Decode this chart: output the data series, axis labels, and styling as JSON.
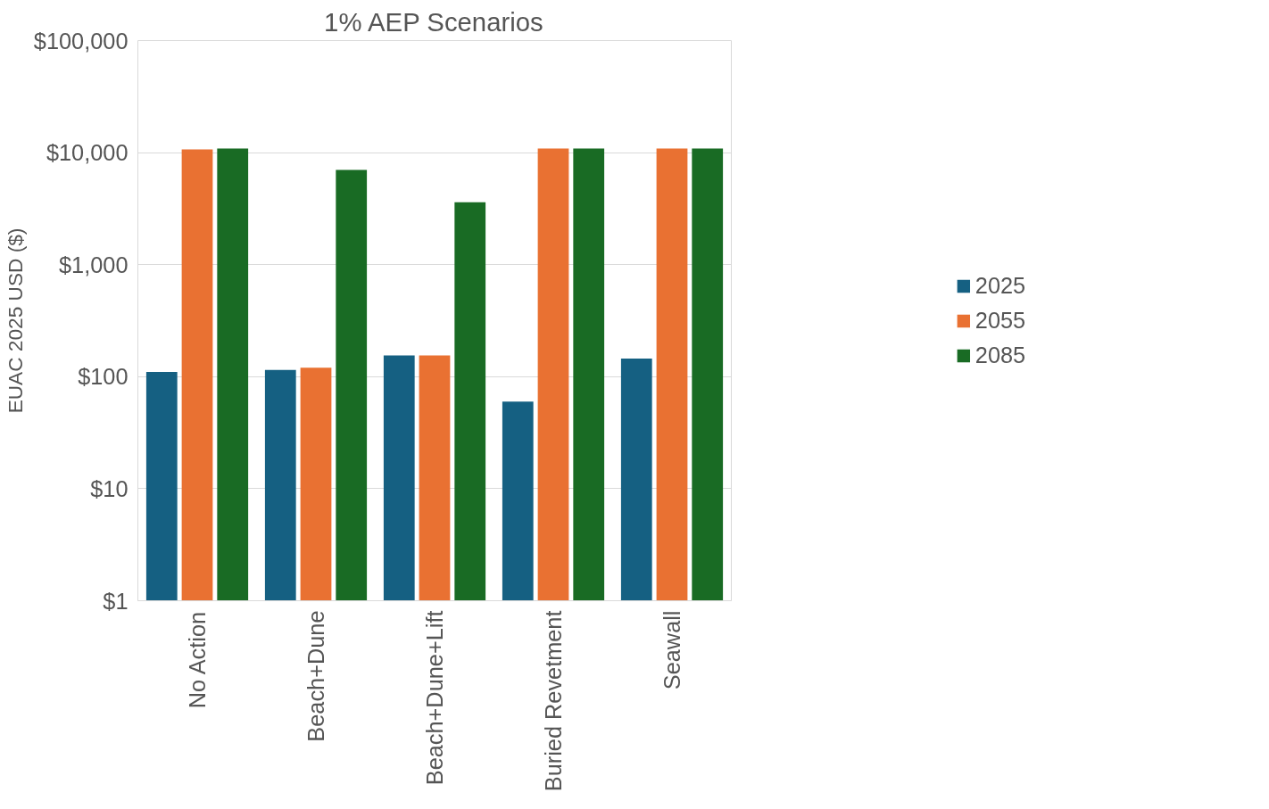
{
  "chart_data": {
    "type": "bar",
    "title": "1% AEP Scenarios",
    "ylabel": "EUAC 2025 USD ($)",
    "categories": [
      "No Action",
      "Beach+Dune",
      "Beach+Dune+Lift",
      "Buried Revetment",
      "Seawall"
    ],
    "series": [
      {
        "name": "2025",
        "color": "#156082",
        "values": [
          110,
          115,
          155,
          60,
          145
        ]
      },
      {
        "name": "2055",
        "color": "#e97132",
        "values": [
          10700,
          120,
          155,
          10900,
          10900
        ]
      },
      {
        "name": "2085",
        "color": "#196b24",
        "values": [
          10900,
          7000,
          3600,
          10900,
          10900
        ]
      }
    ],
    "log": true,
    "ylim": [
      1,
      100000
    ],
    "yticks": [
      {
        "value": 1,
        "label": "$1"
      },
      {
        "value": 10,
        "label": "$10"
      },
      {
        "value": 100,
        "label": "$100"
      },
      {
        "value": 1000,
        "label": "$1,000"
      },
      {
        "value": 10000,
        "label": "$10,000"
      },
      {
        "value": 100000,
        "label": "$100,000"
      }
    ],
    "grid": "y",
    "legend": "right"
  }
}
